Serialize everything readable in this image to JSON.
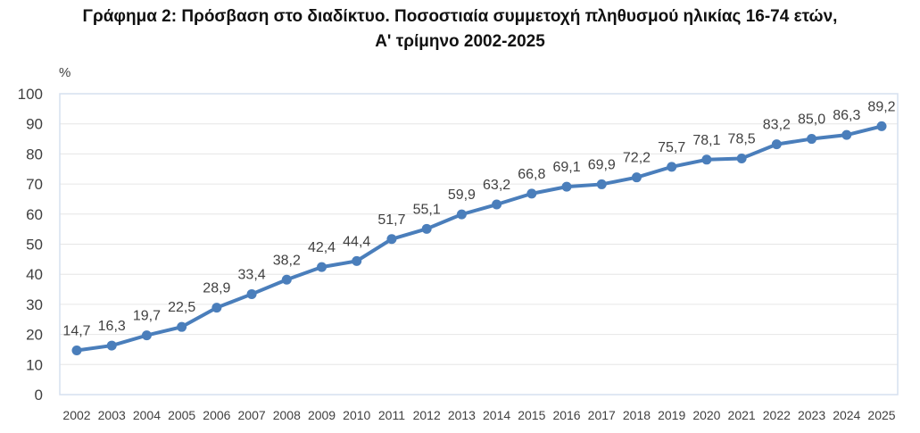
{
  "chart_data": {
    "type": "line",
    "title": "Γράφημα 2: Πρόσβαση στο διαδίκτυο. Ποσοστιαία συμμετοχή πληθυσμού ηλικίας 16-74 ετών,",
    "subtitle": "Α' τρίμηνο 2002-2025",
    "ylabel": "%",
    "xlabel": "",
    "ylim": [
      0,
      100
    ],
    "yticks": [
      0,
      10,
      20,
      30,
      40,
      50,
      60,
      70,
      80,
      90,
      100
    ],
    "grid": true,
    "categories": [
      "2002",
      "2003",
      "2004",
      "2005",
      "2006",
      "2007",
      "2008",
      "2009",
      "2010",
      "2011",
      "2012",
      "2013",
      "2014",
      "2015",
      "2016",
      "2017",
      "2018",
      "2019",
      "2020",
      "2021",
      "2022",
      "2023",
      "2024",
      "2025"
    ],
    "values": [
      14.7,
      16.3,
      19.7,
      22.5,
      28.9,
      33.4,
      38.2,
      42.4,
      44.4,
      51.7,
      55.1,
      59.9,
      63.2,
      66.8,
      69.1,
      69.9,
      72.2,
      75.7,
      78.1,
      78.5,
      83.2,
      85.0,
      86.3,
      89.2
    ],
    "data_labels": [
      "14,7",
      "16,3",
      "19,7",
      "22,5",
      "28,9",
      "33,4",
      "38,2",
      "42,4",
      "44,4",
      "51,7",
      "55,1",
      "59,9",
      "63,2",
      "66,8",
      "69,1",
      "69,9",
      "72,2",
      "75,7",
      "78,1",
      "78,5",
      "83,2",
      "85,0",
      "86,3",
      "89,2"
    ],
    "line_color": "#4a7ebb"
  }
}
